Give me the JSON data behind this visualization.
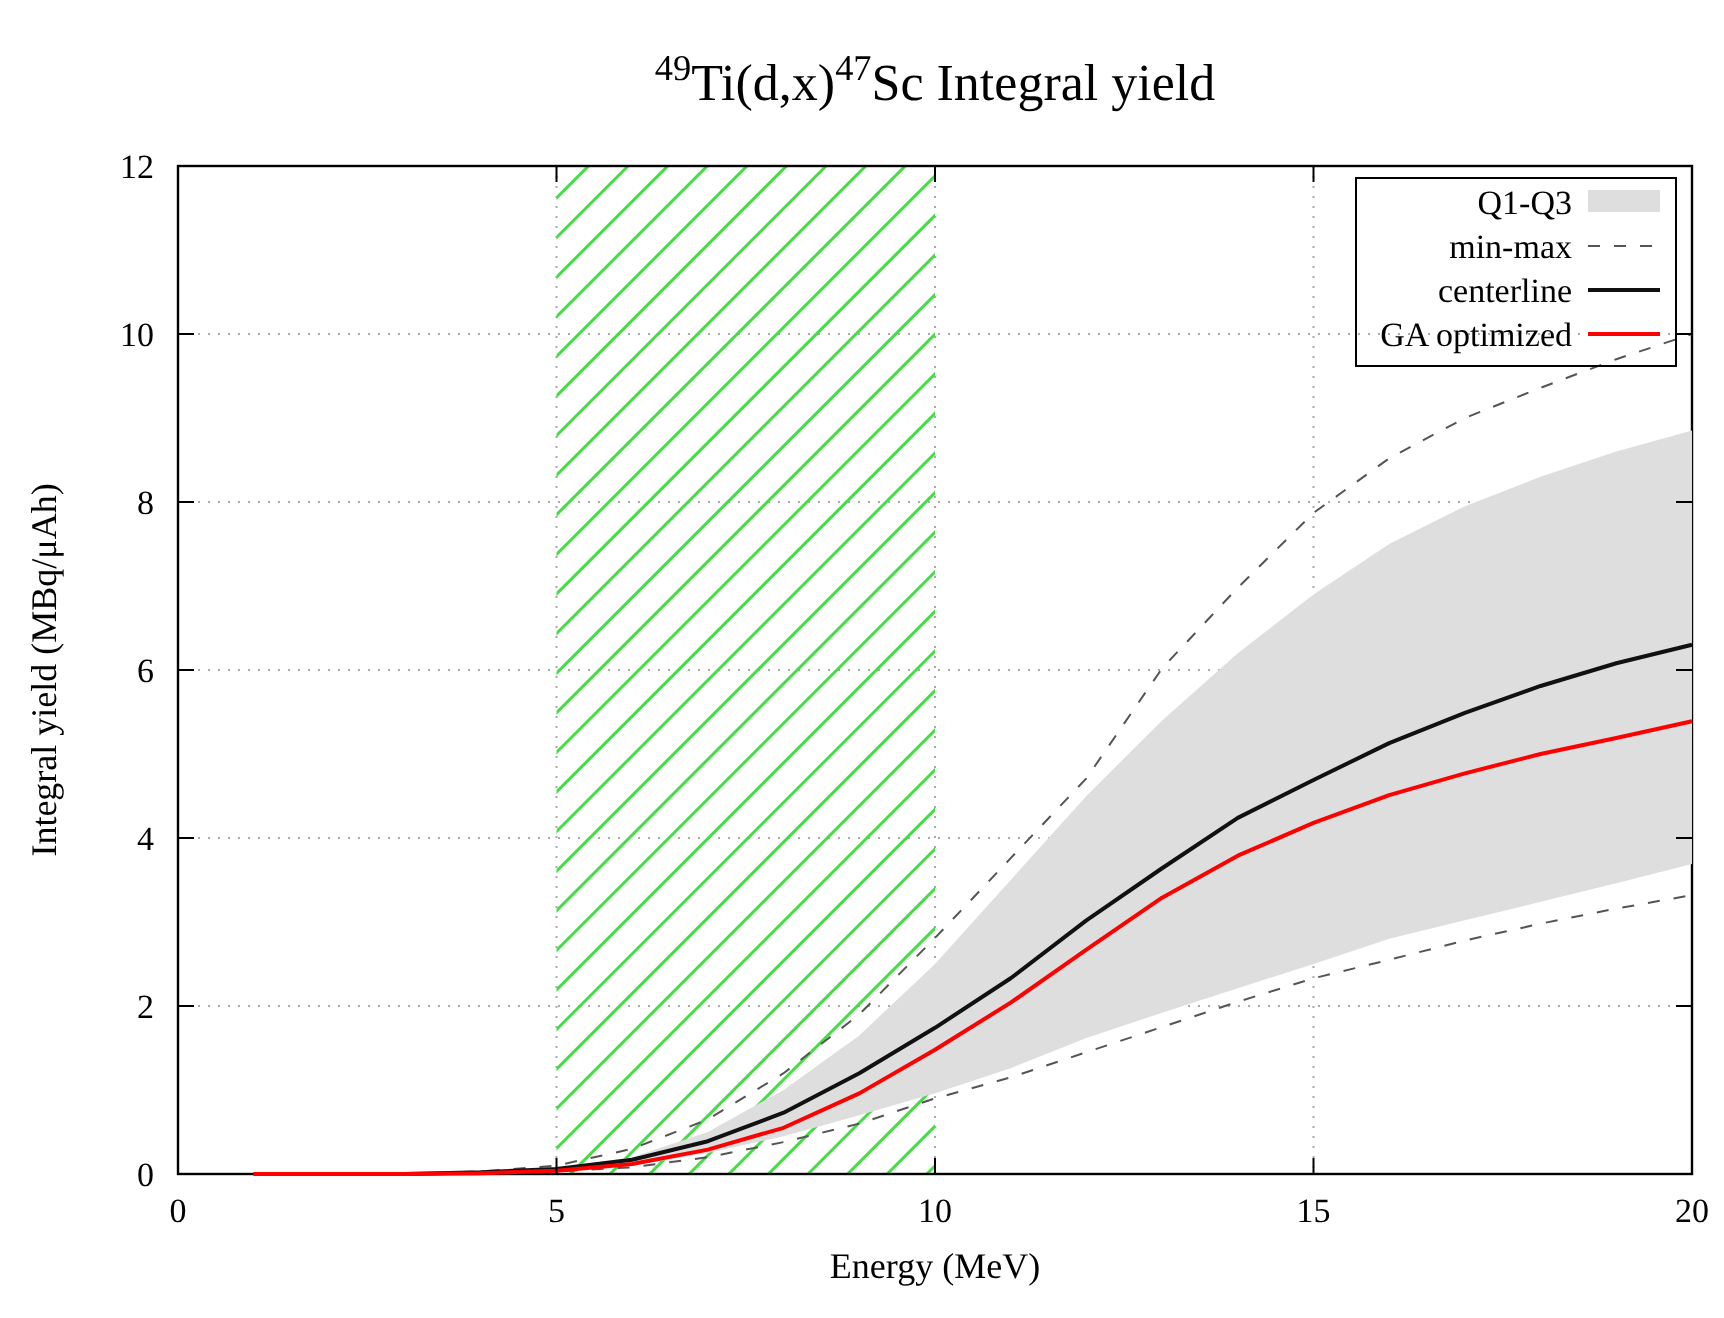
{
  "chart_data": {
    "type": "line",
    "title": "$^{49}$Ti(d,x)$^{47}$Sc Integral yield",
    "xlabel": "Energy (MeV)",
    "ylabel": "Integral yield (MBq/μAh)",
    "annotations": [
      "Q1-Q3"
    ],
    "x": [
      1,
      2,
      3,
      4,
      5,
      6,
      7,
      8,
      9,
      10,
      11,
      12,
      13,
      14,
      15,
      16,
      17,
      18,
      19,
      20
    ],
    "series": [
      {
        "name": "min-max",
        "line_style": "dashed",
        "color": "#555555",
        "values": [
          0,
          0,
          0,
          0.01,
          0.03,
          0.08,
          0.2,
          0.38,
          0.6,
          0.9,
          1.15,
          1.45,
          1.75,
          2.05,
          2.33,
          2.55,
          2.78,
          2.98,
          3.16,
          3.32
        ]
      },
      {
        "line_style": "dashed",
        "color": "#555555",
        "values": [
          0,
          0,
          0,
          0.03,
          0.1,
          0.3,
          0.65,
          1.2,
          1.9,
          2.81,
          3.76,
          4.71,
          6.02,
          6.98,
          7.87,
          8.52,
          9.0,
          9.36,
          9.7,
          10.0
        ]
      },
      {
        "name": "centerline",
        "line_style": "solid",
        "color": "#111111",
        "values": [
          0,
          0,
          0,
          0.02,
          0.06,
          0.17,
          0.39,
          0.73,
          1.2,
          1.74,
          2.33,
          3.02,
          3.64,
          4.24,
          4.69,
          5.13,
          5.49,
          5.81,
          6.08,
          6.3
        ],
        "lower": [
          0,
          0,
          0,
          0.01,
          0.03,
          0.1,
          0.25,
          0.45,
          0.7,
          0.96,
          1.26,
          1.62,
          1.92,
          2.21,
          2.5,
          2.8,
          3.02,
          3.24,
          3.46,
          3.69
        ],
        "upper": [
          0,
          0,
          0,
          0.02,
          0.07,
          0.2,
          0.5,
          1.0,
          1.65,
          2.5,
          3.5,
          4.5,
          5.4,
          6.2,
          6.9,
          7.5,
          7.95,
          8.3,
          8.6,
          8.85
        ]
      },
      {
        "name": "GA optimized",
        "line_style": "solid",
        "color": "#ff0000",
        "values": [
          0,
          0,
          0,
          0.01,
          0.04,
          0.12,
          0.29,
          0.55,
          0.96,
          1.48,
          2.04,
          2.67,
          3.29,
          3.79,
          4.18,
          4.51,
          4.77,
          5.0,
          5.19,
          5.39
        ]
      }
    ],
    "bands": [
      {
        "axis": "x",
        "from": 5,
        "to": 10,
        "color": "#44dd44"
      }
    ],
    "xlim": [
      0,
      20
    ],
    "xticks": [
      0,
      5,
      10,
      15,
      20
    ],
    "ylim": [
      0,
      12
    ],
    "yticks": [
      0,
      2,
      4,
      6,
      8,
      10,
      12
    ],
    "grid": true,
    "legend": "top right",
    "marker": "none"
  }
}
